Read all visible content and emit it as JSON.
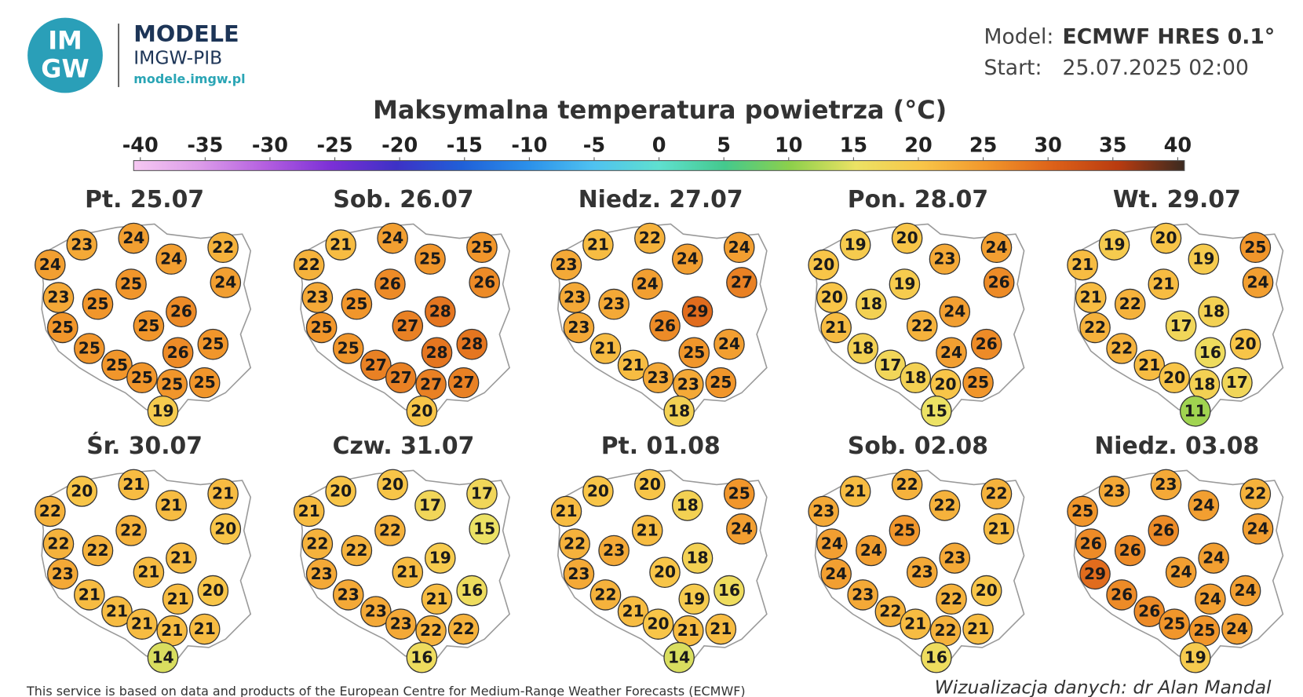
{
  "header": {
    "logo": [
      "IM",
      "GW"
    ],
    "brand": "MODELE",
    "org": "IMGW-PIB",
    "url": "modele.imgw.pl",
    "model_label": "Model:",
    "model": "ECMWF HRES 0.1°",
    "start_label": "Start:",
    "start": "25.07.2025 02:00"
  },
  "title": "Maksymalna temperatura powietrza (°C)",
  "colorbar": {
    "ticks": [
      -40,
      -35,
      -30,
      -25,
      -20,
      -15,
      -10,
      -5,
      0,
      5,
      10,
      15,
      20,
      25,
      30,
      35,
      40
    ],
    "colors": [
      "#f6c8f2",
      "#dc9ce9",
      "#b45fe0",
      "#7c30d6",
      "#3d31c6",
      "#2060d8",
      "#2b90ea",
      "#4fc2f0",
      "#5fe0cf",
      "#44c98d",
      "#8dd04b",
      "#ece264",
      "#f8c548",
      "#f1962b",
      "#dd6119",
      "#b83b10",
      "#3a2a20"
    ]
  },
  "maps": [
    {
      "title": "Pt. 25.07",
      "values": [
        24,
        23,
        24,
        22,
        24,
        24,
        25,
        23,
        25,
        26,
        25,
        25,
        25,
        25,
        26,
        25,
        25,
        25,
        25,
        19
      ]
    },
    {
      "title": "Sob. 26.07",
      "values": [
        22,
        21,
        24,
        25,
        25,
        26,
        26,
        23,
        25,
        28,
        25,
        27,
        28,
        25,
        28,
        27,
        27,
        27,
        27,
        20
      ]
    },
    {
      "title": "Niedz. 27.07",
      "values": [
        23,
        21,
        22,
        24,
        24,
        27,
        24,
        23,
        23,
        29,
        23,
        26,
        24,
        21,
        25,
        21,
        23,
        23,
        25,
        18
      ]
    },
    {
      "title": "Pon. 28.07",
      "values": [
        20,
        19,
        20,
        24,
        23,
        26,
        19,
        20,
        18,
        24,
        21,
        22,
        26,
        18,
        24,
        17,
        18,
        20,
        25,
        15
      ]
    },
    {
      "title": "Wt. 29.07",
      "values": [
        21,
        19,
        20,
        25,
        19,
        24,
        21,
        21,
        22,
        18,
        22,
        17,
        20,
        22,
        16,
        21,
        20,
        18,
        17,
        11
      ]
    },
    {
      "title": "Śr. 30.07",
      "values": [
        22,
        20,
        21,
        21,
        21,
        20,
        22,
        22,
        22,
        21,
        23,
        21,
        20,
        21,
        21,
        21,
        21,
        21,
        21,
        14
      ]
    },
    {
      "title": "Czw. 31.07",
      "values": [
        21,
        20,
        20,
        17,
        17,
        15,
        22,
        22,
        22,
        19,
        23,
        21,
        16,
        23,
        21,
        23,
        23,
        22,
        22,
        16
      ]
    },
    {
      "title": "Pt. 01.08",
      "values": [
        21,
        20,
        20,
        25,
        18,
        24,
        21,
        22,
        23,
        18,
        23,
        20,
        16,
        22,
        19,
        21,
        20,
        21,
        21,
        14
      ]
    },
    {
      "title": "Sob. 02.08",
      "values": [
        23,
        21,
        22,
        22,
        22,
        21,
        25,
        24,
        24,
        23,
        24,
        23,
        20,
        23,
        22,
        22,
        21,
        22,
        21,
        16
      ]
    },
    {
      "title": "Niedz. 03.08",
      "values": [
        25,
        23,
        23,
        22,
        24,
        24,
        26,
        26,
        26,
        24,
        29,
        24,
        24,
        26,
        24,
        26,
        25,
        25,
        24,
        19
      ]
    }
  ],
  "footer": {
    "credit": "This service is based on data and products of the European Centre for Medium-Range Weather Forecasts (ECMWF)",
    "author": "Wizualizacja danych: dr Alan Mandal"
  }
}
